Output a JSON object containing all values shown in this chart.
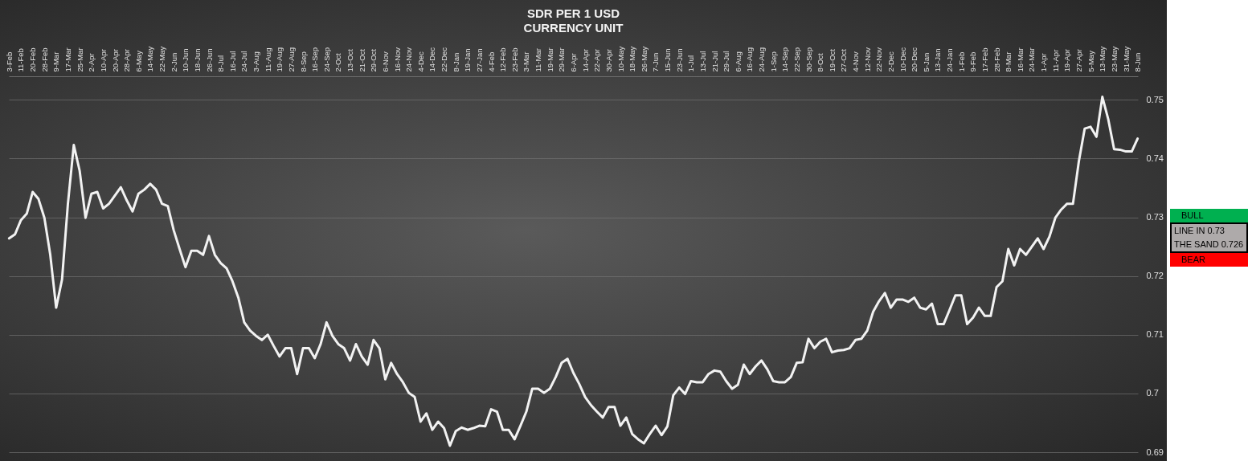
{
  "chart_data": {
    "type": "line",
    "title": "SDR PER 1 USD",
    "subtitle": "CURRENCY UNIT",
    "categories": [
      "3-Feb",
      null,
      "11-Feb",
      null,
      "20-Feb",
      null,
      "28-Feb",
      null,
      "9-Mar",
      null,
      "17-Mar",
      null,
      "25-Mar",
      null,
      "2-Apr",
      null,
      "10-Apr",
      null,
      "20-Apr",
      null,
      "28-Apr",
      null,
      "6-May",
      null,
      "14-May",
      null,
      "22-May",
      null,
      "2-Jun",
      null,
      "10-Jun",
      null,
      "18-Jun",
      null,
      "26-Jun",
      null,
      "8-Jul",
      null,
      "16-Jul",
      null,
      "24-Jul",
      null,
      "3-Aug",
      null,
      "11-Aug",
      null,
      "19-Aug",
      null,
      "27-Aug",
      null,
      "8-Sep",
      null,
      "16-Sep",
      null,
      "24-Sep",
      null,
      "2-Oct",
      null,
      "13-Oct",
      null,
      "21-Oct",
      null,
      "29-Oct",
      null,
      "6-Nov",
      null,
      "16-Nov",
      null,
      "24-Nov",
      null,
      "4-Dec",
      null,
      "14-Dec",
      null,
      "22-Dec",
      null,
      "8-Jan",
      null,
      "19-Jan",
      null,
      "27-Jan",
      null,
      "4-Feb",
      null,
      "12-Feb",
      null,
      "23-Feb",
      null,
      "3-Mar",
      null,
      "11-Mar",
      null,
      "19-Mar",
      null,
      "29-Mar",
      null,
      "6-Apr",
      null,
      "14-Apr",
      null,
      "22-Apr",
      null,
      "30-Apr",
      null,
      "10-May",
      null,
      "18-May",
      null,
      "26-May",
      null,
      "7-Jun",
      null,
      "15-Jun",
      null,
      "23-Jun",
      null,
      "1-Jul",
      null,
      "13-Jul",
      null,
      "21-Jul",
      null,
      "29-Jul",
      null,
      "6-Aug",
      null,
      "16-Aug",
      null,
      "24-Aug",
      null,
      "1-Sep",
      null,
      "14-Sep",
      null,
      "22-Sep",
      null,
      "30-Sep",
      null,
      "8-Oct",
      null,
      "19-Oct",
      null,
      "27-Oct",
      null,
      "4-Nov",
      null,
      "12-Nov",
      null,
      "22-Nov",
      null,
      "2-Dec",
      null,
      "10-Dec",
      null,
      "20-Dec",
      null,
      "5-Jan",
      null,
      "13-Jan",
      null,
      "24-Jan",
      null,
      "1-Feb",
      null,
      "9-Feb",
      null,
      "17-Feb",
      null,
      "28-Feb",
      null,
      "8-Mar",
      null,
      "16-Mar",
      null,
      "24-Mar",
      null,
      "1-Apr",
      null,
      "11-Apr",
      null,
      "19-Apr",
      null,
      "27-Apr",
      null,
      "5-May",
      null,
      "13-May",
      null,
      "23-May",
      null,
      "31-May",
      null,
      "8-Jun"
    ],
    "values": [
      0.7264,
      0.7271,
      0.7295,
      0.7306,
      0.7343,
      0.7331,
      0.7299,
      0.7236,
      0.7146,
      0.7194,
      0.7323,
      0.7423,
      0.7379,
      0.7299,
      0.734,
      0.7343,
      0.7315,
      0.7323,
      0.7337,
      0.7351,
      0.7329,
      0.731,
      0.734,
      0.7347,
      0.7357,
      0.7347,
      0.7323,
      0.7319,
      0.7278,
      0.7246,
      0.7215,
      0.7243,
      0.7243,
      0.7236,
      0.7268,
      0.7236,
      0.7222,
      0.7213,
      0.7191,
      0.7163,
      0.7121,
      0.7107,
      0.7098,
      0.7091,
      0.71,
      0.7081,
      0.7063,
      0.7077,
      0.7077,
      0.7033,
      0.7077,
      0.7077,
      0.706,
      0.7084,
      0.7121,
      0.7098,
      0.7084,
      0.7077,
      0.7056,
      0.7084,
      0.7063,
      0.7049,
      0.7091,
      0.7077,
      0.7024,
      0.7052,
      0.7033,
      0.7019,
      0.7001,
      0.6994,
      0.6952,
      0.6966,
      0.6938,
      0.6952,
      0.6941,
      0.6911,
      0.6936,
      0.6942,
      0.6938,
      0.6941,
      0.6945,
      0.6944,
      0.6973,
      0.6969,
      0.6938,
      0.6938,
      0.6922,
      0.6945,
      0.6969,
      0.7008,
      0.7008,
      0.7001,
      0.7008,
      0.7028,
      0.7052,
      0.7059,
      0.7035,
      0.7016,
      0.6994,
      0.698,
      0.6969,
      0.6959,
      0.6977,
      0.6977,
      0.6945,
      0.6959,
      0.6931,
      0.6922,
      0.6915,
      0.6931,
      0.6945,
      0.6929,
      0.6944,
      0.6997,
      0.701,
      0.6999,
      0.7021,
      0.7019,
      0.7019,
      0.7033,
      0.7039,
      0.7037,
      0.7021,
      0.7008,
      0.7015,
      0.7049,
      0.7033,
      0.7046,
      0.7056,
      0.7041,
      0.7021,
      0.7019,
      0.7019,
      0.7028,
      0.7052,
      0.7053,
      0.7093,
      0.7077,
      0.7088,
      0.7093,
      0.707,
      0.7073,
      0.7074,
      0.7077,
      0.7091,
      0.7093,
      0.7107,
      0.7139,
      0.7157,
      0.7171,
      0.7146,
      0.716,
      0.716,
      0.7156,
      0.7163,
      0.7146,
      0.7143,
      0.7153,
      0.7118,
      0.7118,
      0.7142,
      0.7167,
      0.7167,
      0.7118,
      0.7129,
      0.7146,
      0.7132,
      0.7132,
      0.7181,
      0.7191,
      0.7246,
      0.7218,
      0.7246,
      0.7236,
      0.725,
      0.7264,
      0.7246,
      0.7267,
      0.7299,
      0.7313,
      0.7323,
      0.7323,
      0.7395,
      0.7451,
      0.7454,
      0.7437,
      0.7505,
      0.7467,
      0.7416,
      0.7415,
      0.7412,
      0.7412,
      0.7434
    ],
    "color": "#f2f2f2",
    "ylim": [
      0.69,
      0.754
    ],
    "yticks": [
      0.69,
      0.7,
      0.71,
      0.72,
      0.73,
      0.74,
      0.75
    ],
    "grid": "y",
    "annotations": [
      "BULL",
      "LINE IN 0.73",
      "THE SAND 0.726",
      "BEAR"
    ]
  }
}
